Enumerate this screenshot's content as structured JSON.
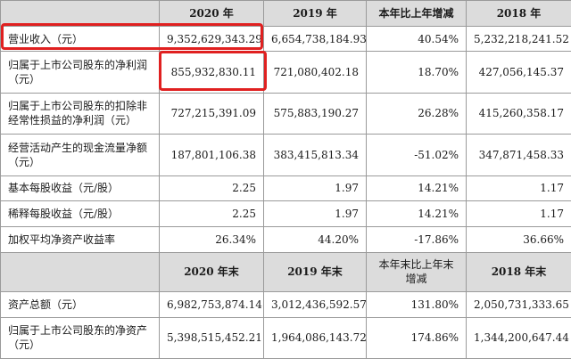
{
  "header1": [
    "",
    "2020 年",
    "2019 年",
    "本年比上年增减",
    "2018 年"
  ],
  "rows1": [
    {
      "label": "营业收入（元）",
      "values": [
        "9,352,629,343.29",
        "6,654,738,184.93",
        "40.54%",
        "5,232,218,241.52"
      ]
    },
    {
      "label": "归属于上市公司股东的净利润（元）",
      "values": [
        "855,932,830.11",
        "721,080,402.18",
        "18.70%",
        "427,056,145.37"
      ]
    },
    {
      "label": "归属于上市公司股东的扣除非经常性损益的净利润（元）",
      "values": [
        "727,215,391.09",
        "575,883,190.27",
        "26.28%",
        "415,260,358.17"
      ]
    },
    {
      "label": "经营活动产生的现金流量净额（元）",
      "values": [
        "187,801,106.38",
        "383,415,813.34",
        "-51.02%",
        "347,871,458.33"
      ]
    },
    {
      "label": "基本每股收益（元/股）",
      "values": [
        "2.25",
        "1.97",
        "14.21%",
        "1.17"
      ]
    },
    {
      "label": "稀释每股收益（元/股）",
      "values": [
        "2.25",
        "1.97",
        "14.21%",
        "1.17"
      ]
    },
    {
      "label": "加权平均净资产收益率",
      "values": [
        "26.34%",
        "44.20%",
        "-17.86%",
        "36.66%"
      ]
    }
  ],
  "header2": [
    "",
    "2020 年末",
    "2019 年末",
    "本年末比上年末增减",
    "2018 年末"
  ],
  "rows2": [
    {
      "label": "资产总额（元）",
      "values": [
        "6,982,753,874.14",
        "3,012,436,592.57",
        "131.80%",
        "2,050,731,333.65"
      ]
    },
    {
      "label": "归属于上市公司股东的净资产（元）",
      "values": [
        "5,398,515,452.21",
        "1,964,086,143.72",
        "174.86%",
        "1,344,200,647.44"
      ]
    }
  ]
}
